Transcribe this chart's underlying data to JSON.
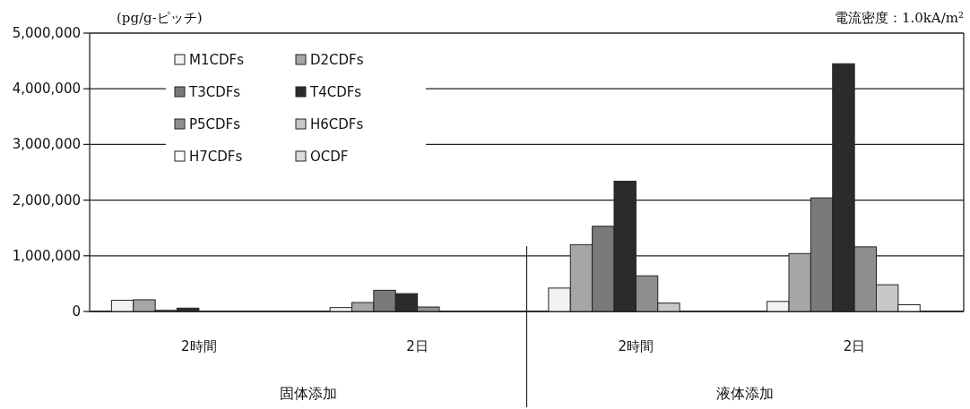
{
  "chart_data": {
    "type": "bar",
    "ylabel": "(pg/g-ピッチ)",
    "annotations": [
      "電流密度：1.0kA/m²",
      "固体添加",
      "液体添加"
    ],
    "categories": [
      "2時間",
      "2日",
      "2時間",
      "2日"
    ],
    "ylim": [
      0,
      5000000
    ],
    "yticks": [
      {
        "value": 0,
        "label": "0"
      },
      {
        "value": 1000000,
        "label": "1,000,000"
      },
      {
        "value": 2000000,
        "label": "2,000,000"
      },
      {
        "value": 3000000,
        "label": "3,000,000"
      },
      {
        "value": 4000000,
        "label": "4,000,000"
      },
      {
        "value": 5000000,
        "label": "5,000,000"
      }
    ],
    "grid": "y",
    "legend": "top left",
    "series": [
      {
        "name": "M1CDFs",
        "color": "#f2f2f2",
        "values": [
          200000,
          70000,
          420000,
          180000
        ]
      },
      {
        "name": "D2CDFs",
        "color": "#a6a6a6",
        "values": [
          210000,
          160000,
          1200000,
          1040000
        ]
      },
      {
        "name": "T3CDFs",
        "color": "#7a7a7a",
        "values": [
          20000,
          380000,
          1530000,
          2040000
        ]
      },
      {
        "name": "T4CDFs",
        "color": "#2b2b2b",
        "values": [
          60000,
          320000,
          2340000,
          4450000
        ]
      },
      {
        "name": "P5CDFs",
        "color": "#8f8f8f",
        "values": [
          0,
          80000,
          640000,
          1160000
        ]
      },
      {
        "name": "H6CDFs",
        "color": "#c8c8c8",
        "values": [
          0,
          0,
          150000,
          480000
        ]
      },
      {
        "name": "H7CDFs",
        "color": "#ffffff",
        "values": [
          0,
          0,
          0,
          120000
        ]
      },
      {
        "name": "OCDF",
        "color": "#dcdcdc",
        "values": [
          0,
          0,
          0,
          0
        ]
      }
    ]
  }
}
